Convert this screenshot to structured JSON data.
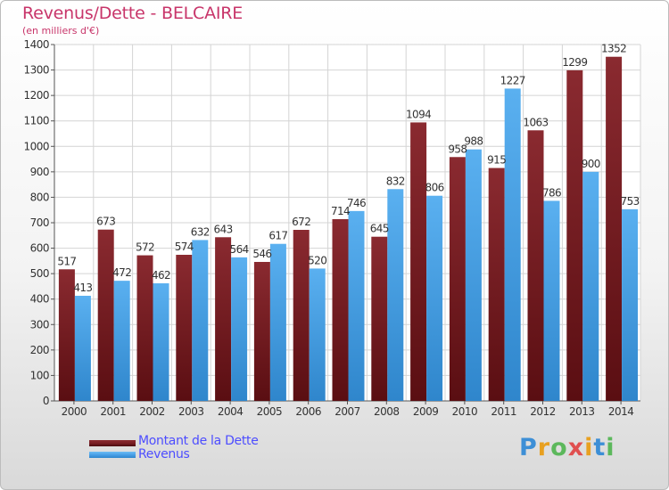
{
  "title": "Revenus/Dette - BELCAIRE",
  "subtitle": "(en milliers d'€)",
  "logo": {
    "text": "Proxiti",
    "letters": [
      "P",
      "r",
      "o",
      "x",
      "i",
      "t",
      "i"
    ],
    "colors": [
      "#3d8fd6",
      "#e8a020",
      "#5cb85c",
      "#e05050",
      "#e8a020",
      "#3d8fd6",
      "#5cb85c"
    ]
  },
  "colors": {
    "dette": "#7a1f24",
    "revenus": "#4aa0e6",
    "title": "#c8356a",
    "legend_text": "#4d4dff"
  },
  "chart_data": {
    "type": "bar",
    "categories": [
      "2000",
      "2001",
      "2002",
      "2003",
      "2004",
      "2005",
      "2006",
      "2007",
      "2008",
      "2009",
      "2010",
      "2011",
      "2012",
      "2013",
      "2014"
    ],
    "series": [
      {
        "name": "Montant de la Dette",
        "values": [
          517,
          673,
          572,
          574,
          643,
          546,
          672,
          714,
          645,
          1094,
          958,
          915,
          1063,
          1299,
          1352
        ]
      },
      {
        "name": "Revenus",
        "values": [
          413,
          472,
          462,
          632,
          564,
          617,
          520,
          746,
          832,
          806,
          988,
          1227,
          786,
          900,
          753
        ]
      }
    ],
    "yticks": [
      0,
      100,
      200,
      300,
      400,
      500,
      600,
      700,
      800,
      900,
      1000,
      1100,
      1200,
      1300,
      1400
    ],
    "ylim": [
      0,
      1400
    ],
    "grid": true,
    "legend_position": "bottom-left"
  }
}
